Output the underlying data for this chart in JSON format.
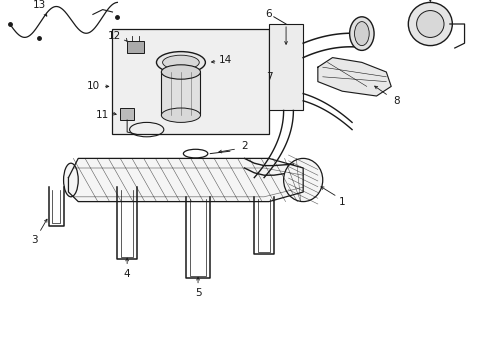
{
  "bg_color": "#ffffff",
  "lc": "#1a1a1a",
  "figsize": [
    4.89,
    3.6
  ],
  "dpi": 100,
  "fs": 7.5
}
